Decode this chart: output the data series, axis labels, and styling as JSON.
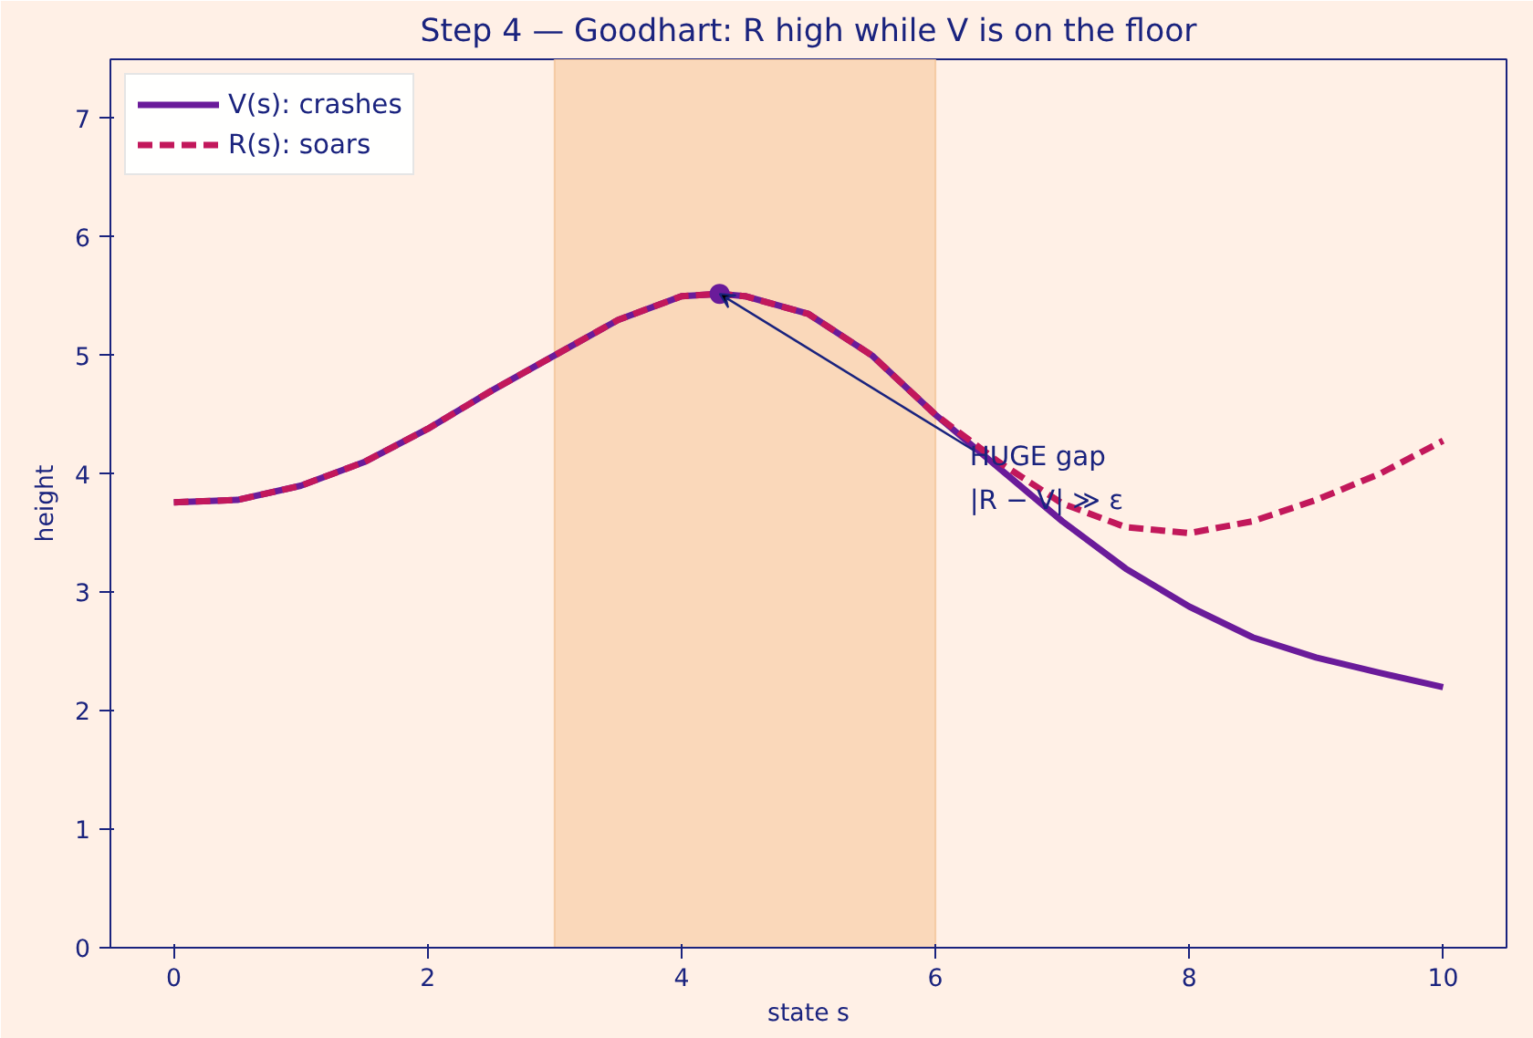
{
  "chart_data": {
    "type": "line",
    "title": "Step 4 — Goodhart: R high while V is on the floor",
    "xlabel": "state s",
    "ylabel": "height",
    "x": [
      0,
      0.5,
      1,
      1.5,
      2,
      2.5,
      3,
      3.5,
      4,
      4.3,
      4.5,
      5,
      5.5,
      6,
      6.5,
      7,
      7.5,
      8,
      8.5,
      9,
      9.5,
      10
    ],
    "series": [
      {
        "name": "V(s): crashes",
        "color": "#6a1b9a",
        "line_style": "solid",
        "values": [
          3.76,
          3.78,
          3.9,
          4.1,
          4.38,
          4.7,
          5.0,
          5.3,
          5.5,
          5.52,
          5.5,
          5.35,
          5.0,
          4.5,
          4.05,
          3.6,
          3.2,
          2.88,
          2.62,
          2.45,
          2.32,
          2.2
        ]
      },
      {
        "name": "R(s): soars",
        "color": "#c2185b",
        "line_style": "dashed",
        "values": [
          3.76,
          3.78,
          3.9,
          4.1,
          4.38,
          4.7,
          5.0,
          5.3,
          5.5,
          5.52,
          5.5,
          5.35,
          5.0,
          4.5,
          4.1,
          3.75,
          3.55,
          3.5,
          3.6,
          3.78,
          4.0,
          4.28
        ]
      }
    ],
    "xlim": [
      -0.5,
      10.5
    ],
    "ylim": [
      0,
      7.5
    ],
    "xticks": [
      0,
      2,
      4,
      6,
      8,
      10
    ],
    "yticks": [
      0,
      1,
      2,
      3,
      4,
      5,
      6,
      7
    ],
    "bands": [
      {
        "axis": "x",
        "from": 3,
        "to": 6,
        "color": "#f9d5b5"
      }
    ],
    "annotations": [
      {
        "text": "HUGE gap\n|R − V| ≫ ε",
        "x": 4.3,
        "y": 5.52
      }
    ],
    "grid": false,
    "legend": "top left"
  }
}
